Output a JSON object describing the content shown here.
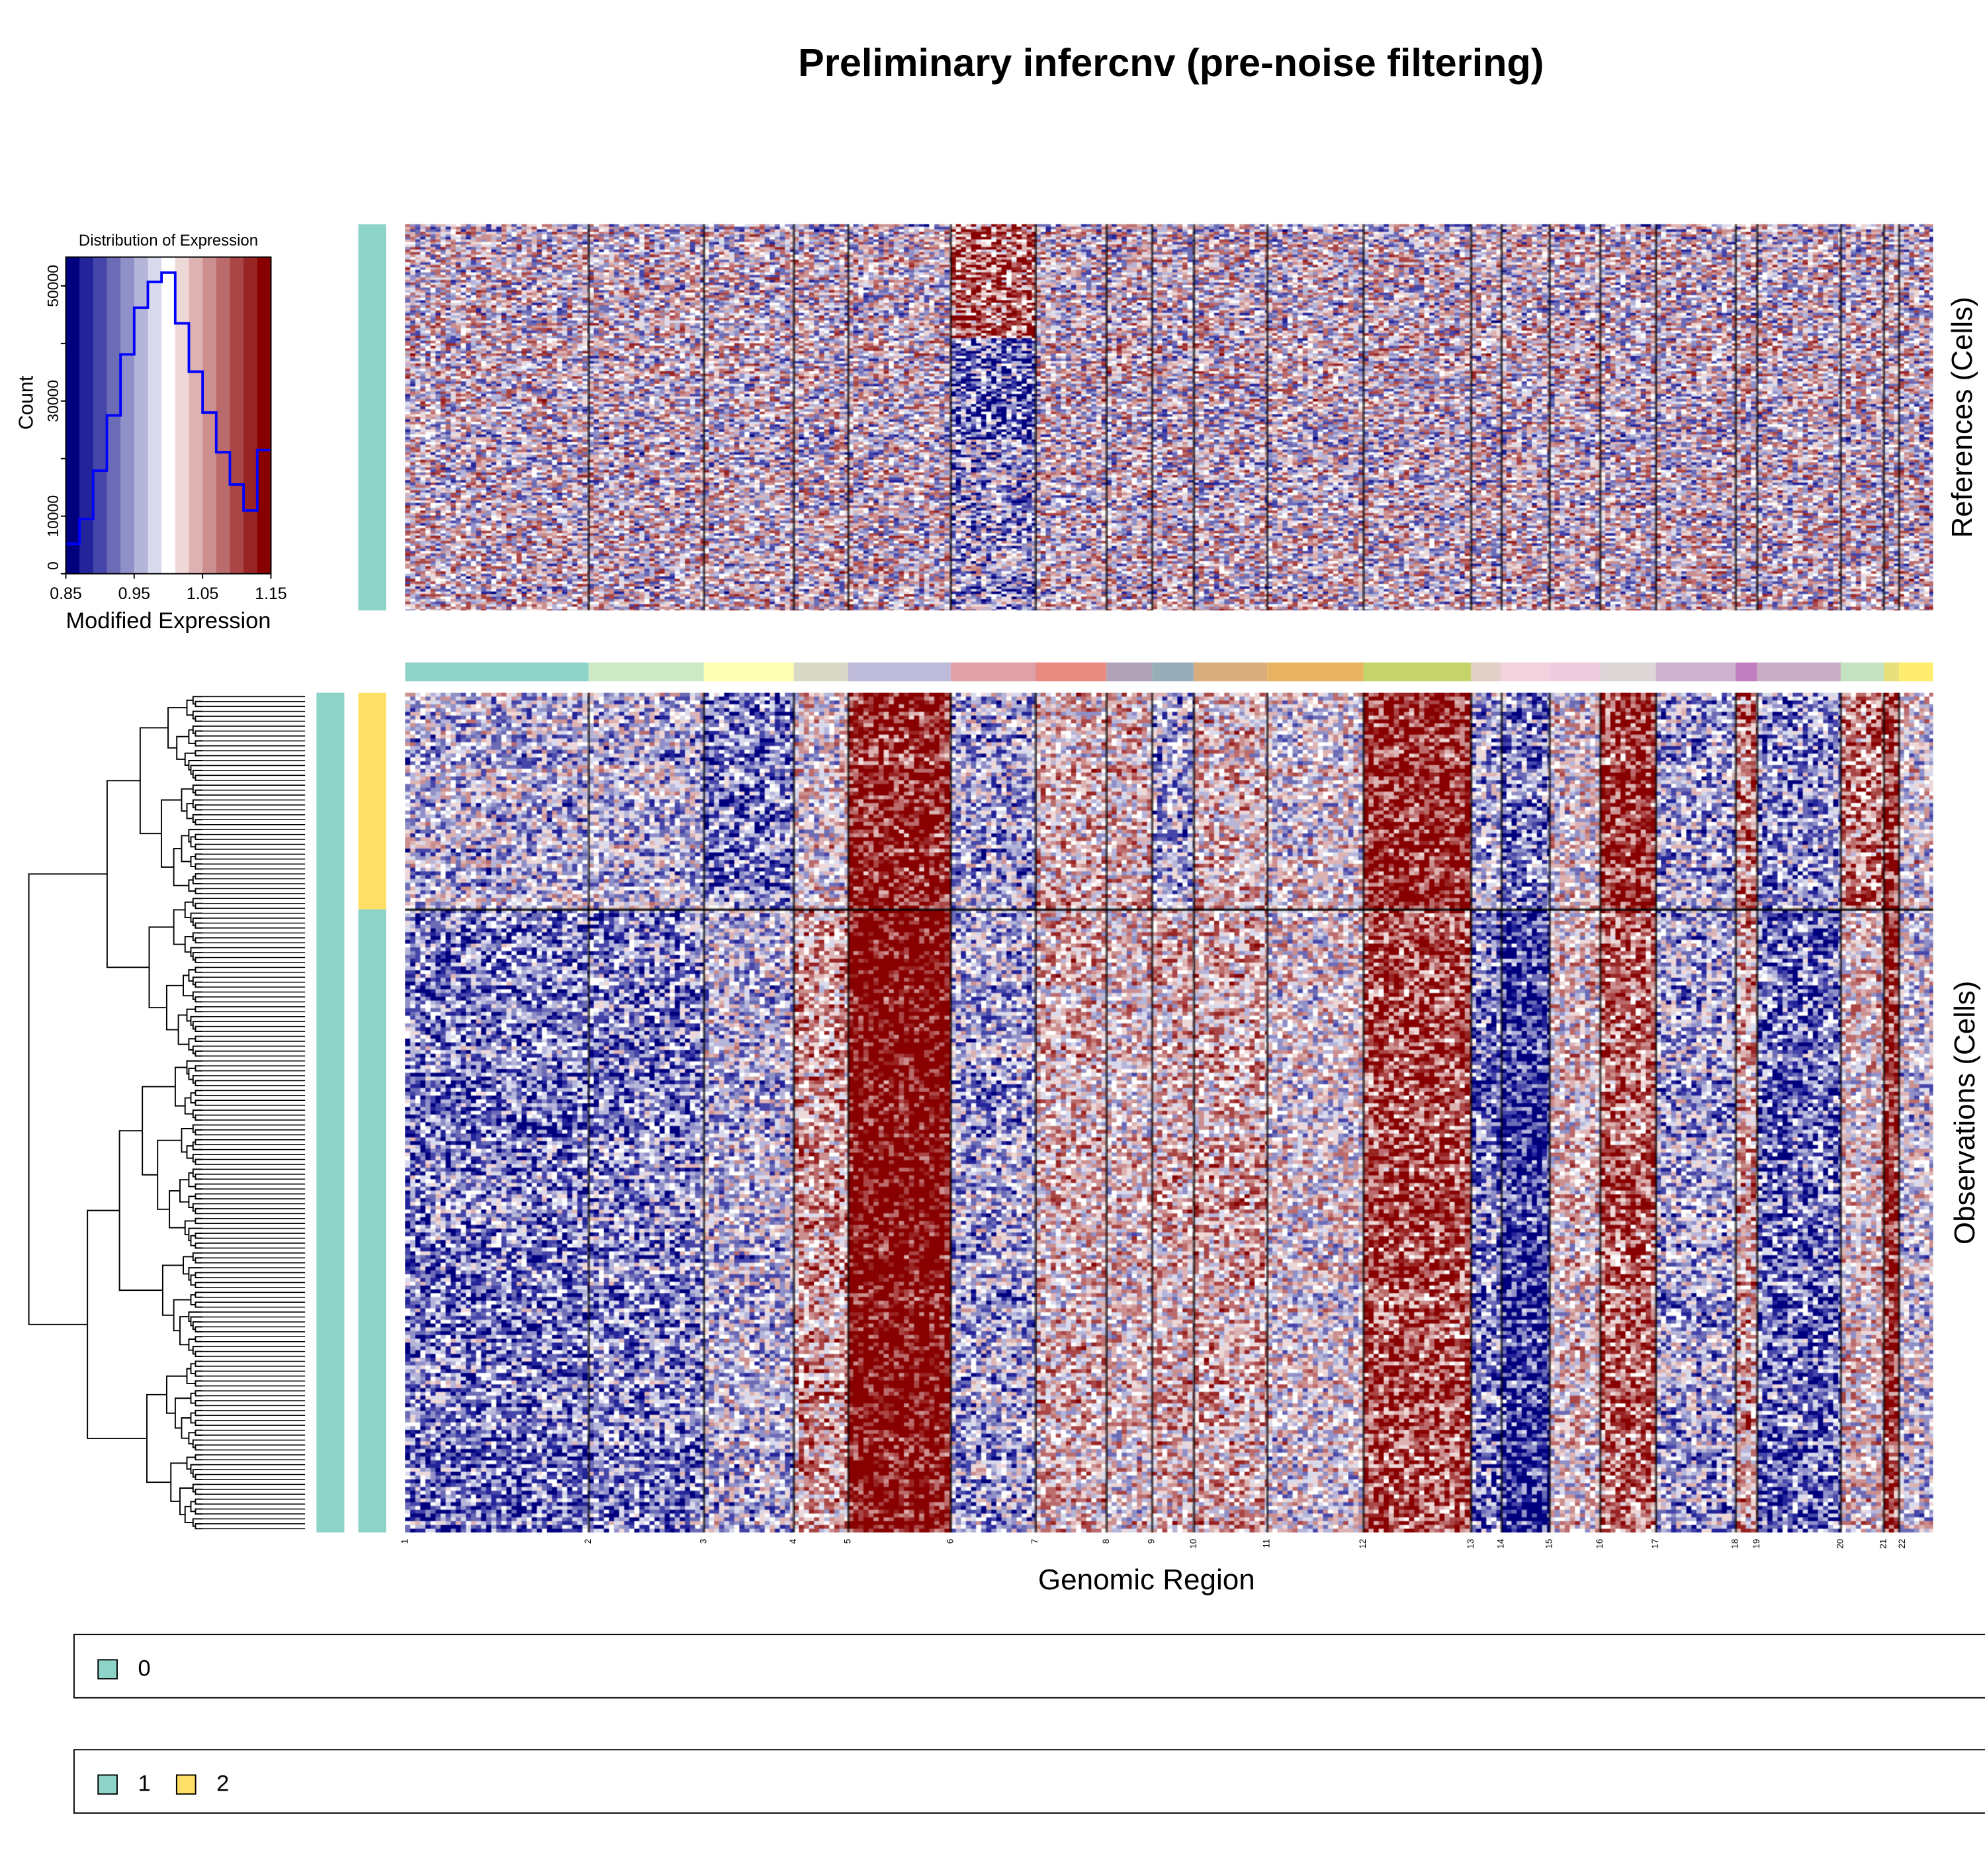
{
  "title": "Preliminary infercnv (pre-noise filtering)",
  "references_label": "References (Cells)",
  "observations_label": "Observations (Cells)",
  "xlabel": "Genomic Region",
  "chromosomes": [
    "1",
    "2",
    "3",
    "4",
    "5",
    "6",
    "7",
    "8",
    "9",
    "10",
    "11",
    "12",
    "13",
    "14",
    "15",
    "16",
    "17",
    "18",
    "19",
    "20",
    "21",
    "22"
  ],
  "chromosome_colors": [
    "#8dd3c7",
    "#ccebc5",
    "#ffffb3",
    "#d9d9c8",
    "#bebada",
    "#e0a0a8",
    "#e98a80",
    "#b0a3b8",
    "#98adb8",
    "#d9ae7c",
    "#e8b363",
    "#c4d36a",
    "#e2cfc7",
    "#f2d2dd",
    "#f0cce0",
    "#ddd6d6",
    "#ccb2cc",
    "#c17ec0",
    "#c9aec6",
    "#c5e3c3",
    "#e7e07a",
    "#ffed6f"
  ],
  "legends": [
    {
      "items": [
        {
          "label": "0",
          "color": "#8dd3c7"
        }
      ]
    },
    {
      "items": [
        {
          "label": "1",
          "color": "#8dd3c7"
        },
        {
          "label": "2",
          "color": "#ffe066"
        }
      ]
    }
  ],
  "colorscale": [
    "#00007f",
    "#24249a",
    "#4646aa",
    "#6b6bb6",
    "#9090c8",
    "#b5b5da",
    "#dadaed",
    "#ffffff",
    "#eed7d7",
    "#ddb2b2",
    "#cc8f8f",
    "#bb6b6b",
    "#aa4646",
    "#992424",
    "#880000"
  ],
  "chart_data": {
    "type": "bar",
    "title": "Distribution of Expression",
    "xlabel": "Modified Expression",
    "ylabel": "Count",
    "xlim": [
      0.85,
      1.15
    ],
    "ylim": [
      0,
      55000
    ],
    "xticks": [
      "0.85",
      "0.95",
      "1.05",
      "1.15"
    ],
    "yticks": [
      "0",
      "10000",
      "30000",
      "50000"
    ],
    "bin_edges": [
      0.85,
      0.87,
      0.89,
      0.91,
      0.93,
      0.95,
      0.97,
      0.99,
      1.01,
      1.03,
      1.05,
      1.07,
      1.09,
      1.11,
      1.13,
      1.15
    ],
    "values": [
      5200,
      9500,
      17900,
      27500,
      38100,
      46200,
      50700,
      52300,
      43500,
      35100,
      28000,
      21100,
      15500,
      11000,
      21500
    ],
    "line_color": "#0000ff"
  }
}
